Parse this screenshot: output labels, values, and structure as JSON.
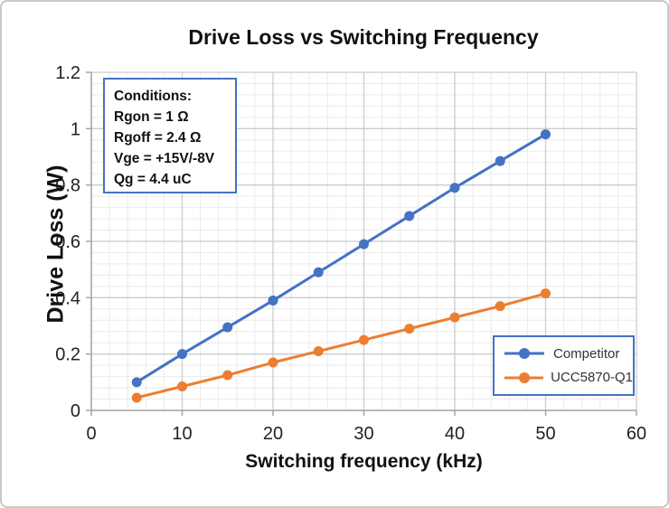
{
  "chart_data": {
    "type": "line",
    "title": "Drive Loss vs Switching Frequency",
    "xlabel": "Switching frequency (kHz)",
    "ylabel": "Drive Loss (W)",
    "x": [
      5,
      10,
      15,
      20,
      25,
      30,
      35,
      40,
      45,
      50
    ],
    "series": [
      {
        "name": "Competitor",
        "color": "#4472C4",
        "values": [
          0.1,
          0.2,
          0.295,
          0.39,
          0.49,
          0.59,
          0.69,
          0.79,
          0.885,
          0.98
        ]
      },
      {
        "name": "UCC5870-Q1",
        "color": "#ED7D31",
        "values": [
          0.045,
          0.085,
          0.125,
          0.17,
          0.21,
          0.25,
          0.29,
          0.33,
          0.37,
          0.415
        ]
      }
    ],
    "xlim": [
      0,
      60
    ],
    "ylim": [
      0,
      1.2
    ],
    "x_ticks": [
      0,
      10,
      20,
      30,
      40,
      50,
      60
    ],
    "x_tick_labels": [
      "0",
      "10",
      "20",
      "30",
      "40",
      "50",
      "60"
    ],
    "y_ticks": [
      0,
      0.2,
      0.4,
      0.6,
      0.8,
      1,
      1.2
    ],
    "y_tick_labels": [
      "0",
      "0.2",
      "0.4",
      "0.6",
      "0.8",
      "1",
      "1.2"
    ],
    "x_minor_step": 2,
    "y_minor_step": 0.04,
    "grid": true,
    "legend_position": "bottom-right"
  },
  "conditions": {
    "title": "Conditions:",
    "lines": [
      "Rgon = 1 Ω",
      "Rgoff = 2.4 Ω",
      "Vge = +15V/-8V",
      "Qg = 4.4 uC"
    ]
  },
  "style": {
    "series_blue": "#4472C4",
    "series_orange": "#ED7D31",
    "box_border": "#4472C4",
    "grid_major": "#cccccc",
    "grid_minor": "#eaeaea",
    "axis": "#a6a6a6",
    "text": "#222222",
    "frame_border": "#c9c9c9"
  }
}
